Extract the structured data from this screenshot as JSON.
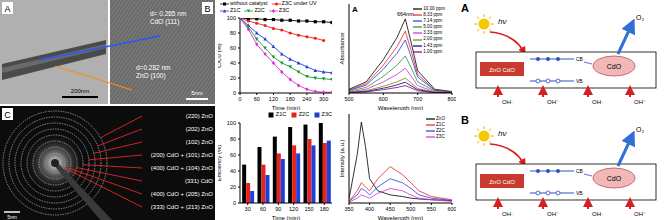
{
  "microscopy": {
    "tem": {
      "label": "A",
      "scale_bar": "200nm"
    },
    "hrtem": {
      "label": "B",
      "scale_bar": "5nm",
      "annotations": [
        [
          "d= 0.265 nm",
          "CdO (111)"
        ],
        [
          "d=0.282 nm",
          "ZnO (100)"
        ]
      ]
    },
    "saed": {
      "label": "C",
      "scale_bar": "5nm",
      "rings": [
        "(220) ZnO",
        "(202) ZnO",
        "(102) ZnO",
        "(200) CdO + (101) ZnO",
        "(400) CdO + (104) ZnO",
        "(331) CdO",
        "(400) CdO + (205) ZnO",
        "(333) CdO + (213) ZnO"
      ]
    }
  },
  "chart_data": [
    {
      "type": "line",
      "x_label": "Time (min)",
      "y_label": "C/C0 (%)",
      "x": [
        0,
        30,
        60,
        90,
        120,
        150,
        180,
        210,
        240,
        270,
        300,
        330
      ],
      "xlim": [
        0,
        330
      ],
      "xticks": [
        0,
        60,
        120,
        180,
        240,
        300
      ],
      "ylim": [
        0,
        100
      ],
      "yticks": [
        0,
        20,
        40,
        60,
        80,
        100
      ],
      "legend": "top",
      "series": [
        {
          "name": "without catalyst",
          "color": "#000000",
          "marker": "square",
          "values": [
            100,
            99,
            99,
            98,
            98,
            97,
            97,
            96,
            96,
            95,
            95,
            94
          ]
        },
        {
          "name": "Z3C under UV",
          "color": "#e8231e",
          "marker": "circle",
          "values": [
            100,
            96,
            93,
            90,
            86,
            84,
            80,
            77,
            75,
            73,
            70,
            null
          ]
        },
        {
          "name": "Z1C",
          "color": "#1f3fd6",
          "marker": "triangle",
          "values": [
            100,
            90,
            80,
            72,
            62,
            52,
            45,
            40,
            35,
            30,
            28,
            27
          ]
        },
        {
          "name": "Z2C",
          "color": "#1a9a3a",
          "marker": "triangle-down",
          "values": [
            100,
            88,
            72,
            60,
            48,
            40,
            35,
            28,
            22,
            20,
            19,
            18
          ]
        },
        {
          "name": "Z3C",
          "color": "#d62bd6",
          "marker": "diamond",
          "values": [
            100,
            85,
            65,
            52,
            40,
            28,
            18,
            10,
            5,
            2,
            1,
            1
          ]
        }
      ]
    },
    {
      "type": "bar",
      "x_label": "Time (min)",
      "y_label": "Efficiency (%)",
      "categories": [
        "30",
        "60",
        "90",
        "120",
        "150",
        "180"
      ],
      "ylim": [
        0,
        100
      ],
      "yticks": [
        0,
        20,
        40,
        60,
        80,
        100
      ],
      "legend": "top",
      "series": [
        {
          "name": "Z1C",
          "color": "#000000",
          "values": [
            48,
            70,
            83,
            95,
            98,
            100
          ]
        },
        {
          "name": "Z2C",
          "color": "#e8231e",
          "values": [
            25,
            48,
            62,
            72,
            80,
            75
          ]
        },
        {
          "name": "Z3C",
          "color": "#1f3fd6",
          "values": [
            15,
            35,
            55,
            62,
            72,
            78
          ]
        }
      ]
    },
    {
      "type": "line",
      "label": "A",
      "x_label": "Wavelength (nm)",
      "y_label": "Absorbance",
      "tick_labels": "x",
      "x": [
        500,
        550,
        600,
        620,
        640,
        664,
        680,
        700,
        750,
        800
      ],
      "xlim": [
        500,
        800
      ],
      "xticks": [
        500,
        600,
        700,
        800
      ],
      "ylim": [
        0,
        2.4
      ],
      "legend": "top right",
      "annotation": {
        "text": "664nm",
        "x": 664
      },
      "series": [
        {
          "name": "10.00 ppm",
          "color": "#000000",
          "values": [
            0.1,
            0.3,
            0.9,
            1.2,
            1.5,
            2.0,
            1.4,
            0.6,
            0.1,
            0.04
          ]
        },
        {
          "name": "8.33 ppm",
          "color": "#e8231e",
          "values": [
            0.08,
            0.25,
            0.75,
            1.0,
            1.25,
            1.67,
            1.17,
            0.5,
            0.08,
            0.03
          ]
        },
        {
          "name": "7.14 ppm",
          "color": "#1f3fd6",
          "values": [
            0.07,
            0.21,
            0.64,
            0.86,
            1.07,
            1.43,
            1.0,
            0.43,
            0.07,
            0.03
          ]
        },
        {
          "name": "5.00 ppm",
          "color": "#1a9a3a",
          "values": [
            0.05,
            0.15,
            0.45,
            0.6,
            0.75,
            1.0,
            0.7,
            0.3,
            0.05,
            0.02
          ]
        },
        {
          "name": "3.33 ppm",
          "color": "#d62bd6",
          "values": [
            0.03,
            0.1,
            0.3,
            0.4,
            0.5,
            0.67,
            0.47,
            0.2,
            0.03,
            0.01
          ]
        },
        {
          "name": "2.00 ppm",
          "color": "#808000",
          "values": [
            0.02,
            0.06,
            0.18,
            0.24,
            0.3,
            0.4,
            0.28,
            0.12,
            0.02,
            0.01
          ]
        },
        {
          "name": "1.43 ppm",
          "color": "#000080",
          "values": [
            0.01,
            0.04,
            0.13,
            0.17,
            0.22,
            0.29,
            0.2,
            0.09,
            0.01,
            0.01
          ]
        },
        {
          "name": "1.00 ppm",
          "color": "#800080",
          "values": [
            0.01,
            0.03,
            0.09,
            0.12,
            0.15,
            0.2,
            0.14,
            0.06,
            0.01,
            0.0
          ]
        }
      ]
    },
    {
      "type": "line",
      "x_label": "Wavelength (nm)",
      "y_label": "Intensity (a.u.)",
      "tick_labels": "x",
      "x": [
        350,
        370,
        380,
        390,
        400,
        420,
        450,
        480,
        500,
        520,
        550,
        600
      ],
      "xlim": [
        350,
        600
      ],
      "xticks": [
        350,
        400,
        450,
        500,
        550,
        600
      ],
      "ylim": [
        0,
        110
      ],
      "legend": "top right",
      "series": [
        {
          "name": "ZnO",
          "color": "#000000",
          "values": [
            5,
            60,
            100,
            70,
            30,
            15,
            10,
            8,
            6,
            5,
            4,
            3
          ]
        },
        {
          "name": "Z1C",
          "color": "#e8231e",
          "values": [
            2,
            15,
            25,
            20,
            15,
            30,
            45,
            35,
            25,
            15,
            8,
            4
          ]
        },
        {
          "name": "Z2C",
          "color": "#1f3fd6",
          "values": [
            2,
            10,
            18,
            15,
            10,
            20,
            30,
            25,
            18,
            10,
            6,
            3
          ]
        },
        {
          "name": "Z3C",
          "color": "#d62bd6",
          "values": [
            1,
            6,
            10,
            8,
            6,
            12,
            18,
            15,
            10,
            6,
            4,
            2
          ]
        }
      ]
    }
  ],
  "diagrams": [
    {
      "label": "A",
      "light": "hν",
      "oxygen": "O₂",
      "composite": "ZnO CdO",
      "particle": "CdO",
      "cb": "CB",
      "vb": "VB",
      "radicals": [
        "OH·",
        "OH⁻",
        "OH·",
        "OH⁻"
      ]
    },
    {
      "label": "B",
      "light": "hν",
      "oxygen": "O₂",
      "composite": "ZnO CdO",
      "particle": "CdO",
      "cb": "CB",
      "vb": "VB",
      "radicals": [
        "OH·",
        "OH⁻",
        "OH·",
        "OH⁻"
      ]
    }
  ]
}
